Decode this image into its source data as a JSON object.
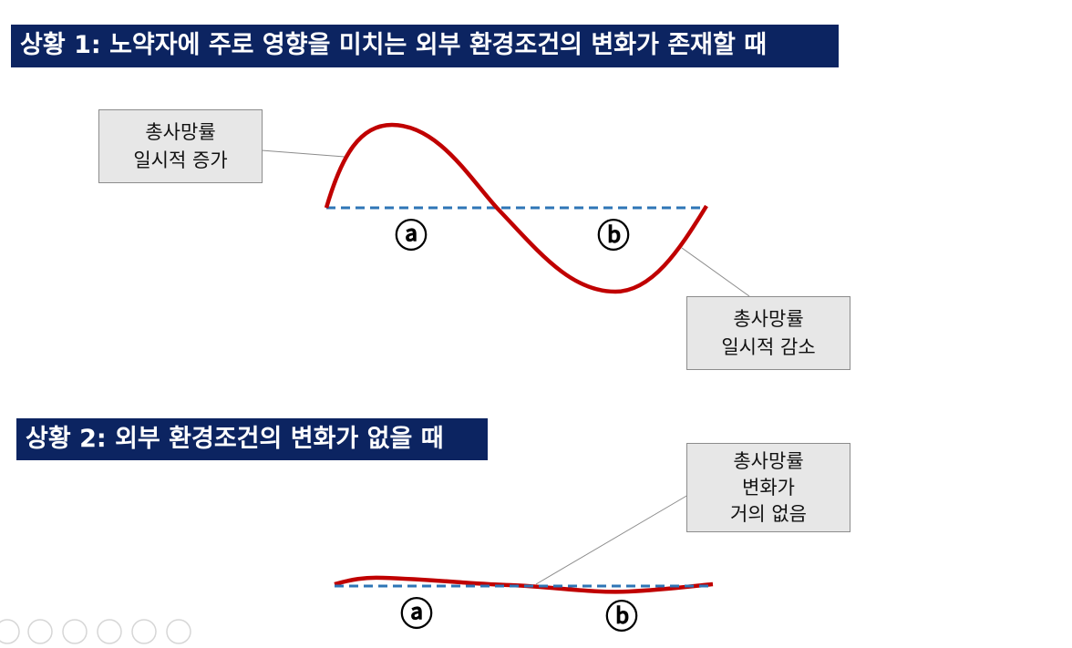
{
  "scenario1": {
    "title": "상황 1: 노약자에 주로 영향을 미치는 외부 환경조건의 변화가 존재할 때",
    "callout_increase": [
      "총사망률",
      "일시적 증가"
    ],
    "callout_decrease": [
      "총사망률",
      "일시적 감소"
    ],
    "label_a": "ⓐ",
    "label_b": "ⓑ"
  },
  "scenario2": {
    "title": "상황 2: 외부 환경조건의 변화가 없을 때",
    "callout_nochange": [
      "총사망률",
      "변화가",
      "거의 없음"
    ],
    "label_a": "ⓐ",
    "label_b": "ⓑ"
  }
}
